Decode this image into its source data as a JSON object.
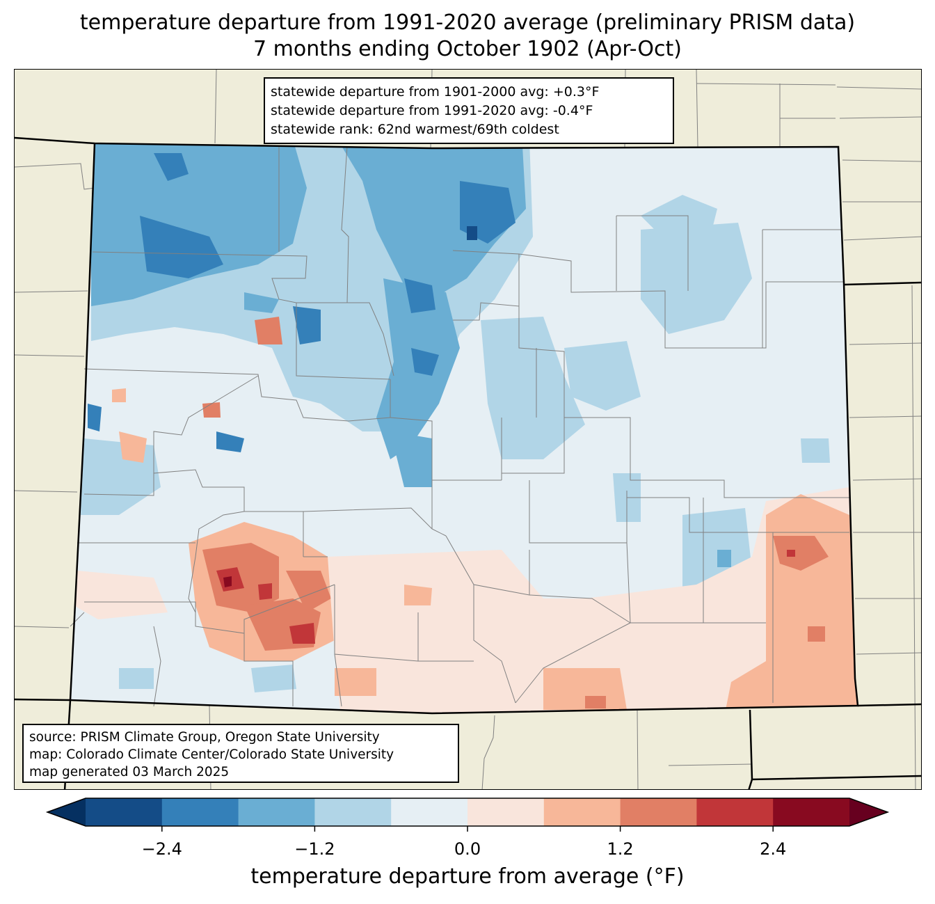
{
  "title": {
    "line1": "temperature departure from 1991-2020 average (preliminary PRISM data)",
    "line2": "7 months ending October 1902 (Apr-Oct)"
  },
  "stats": {
    "dep_1901_2000": "statewide departure from 1901-2000 avg: +0.3°F",
    "dep_1991_2020": "statewide departure from 1991-2020 avg: -0.4°F",
    "rank": "statewide rank: 62nd warmest/69th coldest"
  },
  "credits": {
    "source": "source: PRISM Climate Group, Oregon State University",
    "map": "map: Colorado Climate Center/Colorado State University",
    "generated": "map generated 03 March 2025"
  },
  "colorbar": {
    "label": "temperature departure from average (°F)",
    "bounds": [
      -3.0,
      -2.4,
      -1.8,
      -1.2,
      -0.6,
      0.0,
      0.6,
      1.2,
      1.8,
      2.4,
      3.0
    ],
    "tick_values": [
      -2.4,
      -1.2,
      0.0,
      1.2,
      2.4
    ],
    "tick_labels": [
      "−2.4",
      "−1.2",
      "0.0",
      "1.2",
      "2.4"
    ],
    "colors": [
      "#144c87",
      "#3480b9",
      "#6aaed3",
      "#b1d5e7",
      "#e6eff4",
      "#f9e5dc",
      "#f7b799",
      "#e17f65",
      "#c13639",
      "#880a20"
    ],
    "under_color": "#053061",
    "over_color": "#67001f"
  },
  "map_colors": {
    "land": "#efedda",
    "county_line": "#808080",
    "state_line": "#000000"
  }
}
